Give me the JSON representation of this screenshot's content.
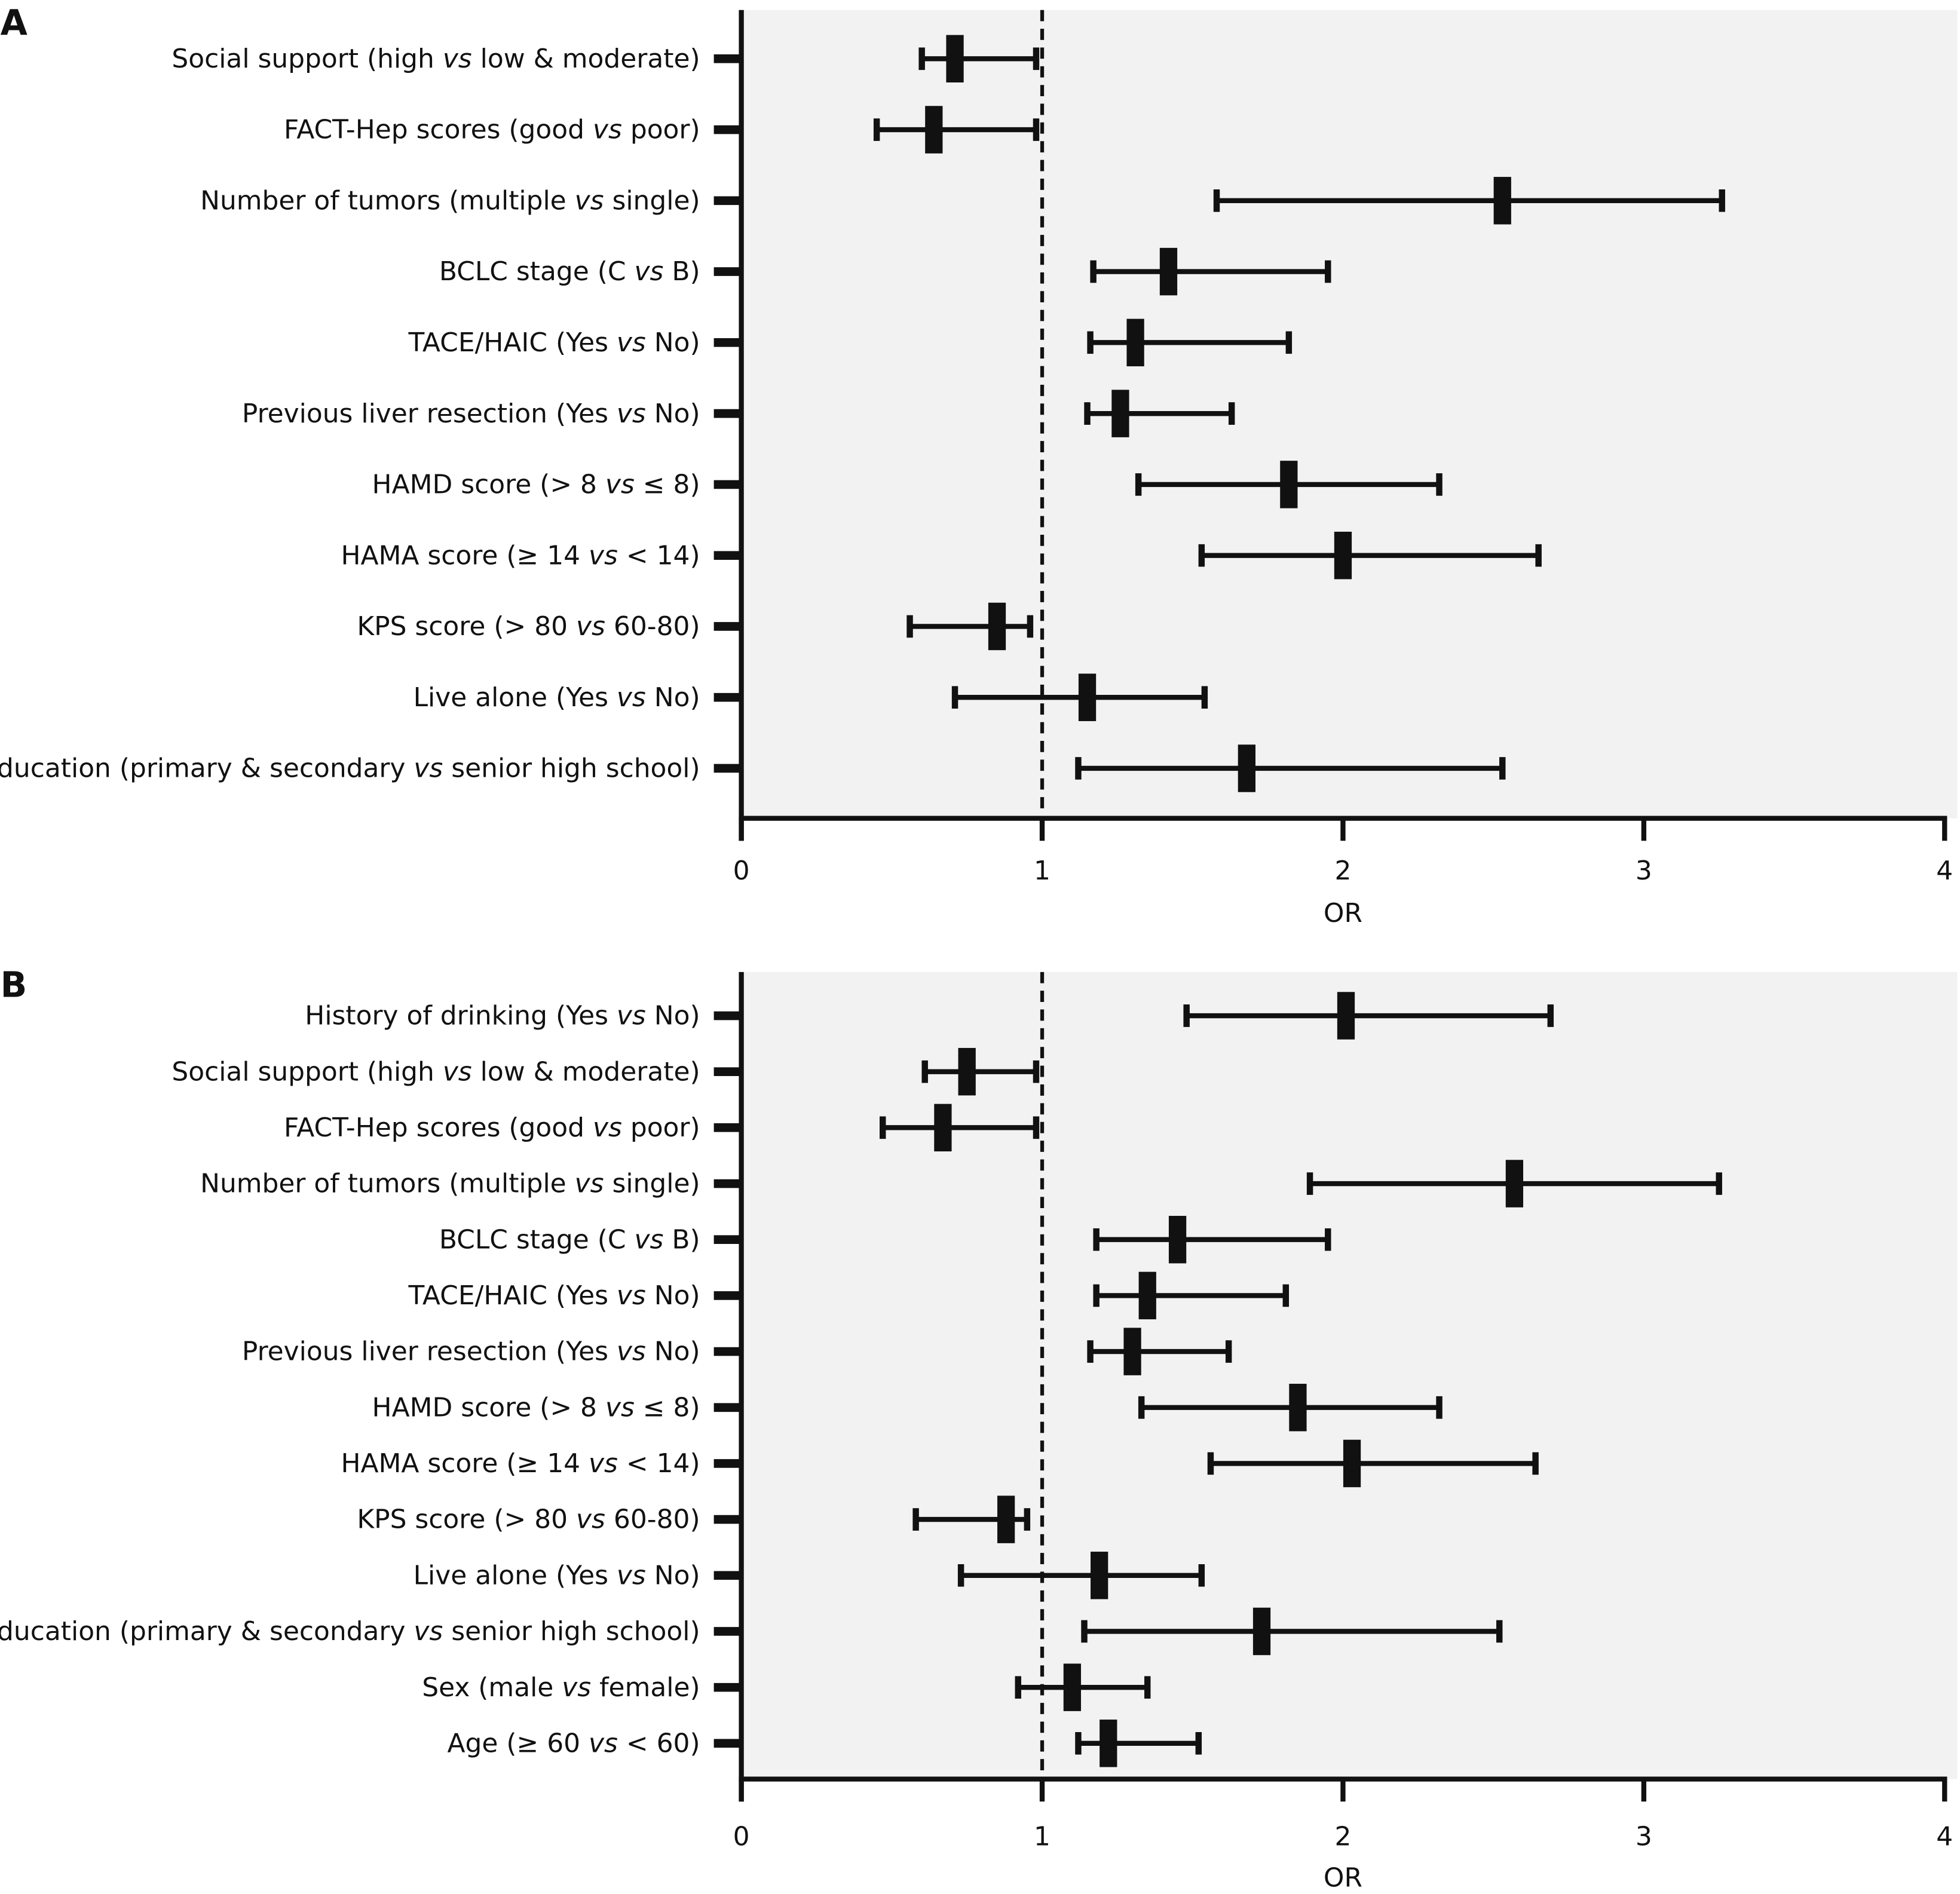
{
  "chart_data": [
    {
      "type": "forest",
      "panel_label": "A",
      "xlabel": "OR",
      "xlim": [
        0,
        4
      ],
      "xticks": [
        "0",
        "1",
        "2",
        "3",
        "4"
      ],
      "reference_line": 1,
      "grid": false,
      "background": "#f2f2f2",
      "rows": [
        {
          "label": "Social support (high vs low & moderate)",
          "or": 0.71,
          "lo": 0.6,
          "hi": 0.98
        },
        {
          "label": "FACT-Hep scores (good vs poor)",
          "or": 0.64,
          "lo": 0.45,
          "hi": 0.98
        },
        {
          "label": "Number of tumors (multiple vs single)",
          "or": 2.53,
          "lo": 1.58,
          "hi": 3.26
        },
        {
          "label": "BCLC stage (C vs B)",
          "or": 1.42,
          "lo": 1.17,
          "hi": 1.95
        },
        {
          "label": "TACE/HAIC (Yes vs No)",
          "or": 1.31,
          "lo": 1.16,
          "hi": 1.82
        },
        {
          "label": "Previous liver resection (Yes vs No)",
          "or": 1.26,
          "lo": 1.15,
          "hi": 1.63
        },
        {
          "label": "HAMD score (> 8 vs ≤ 8)",
          "or": 1.82,
          "lo": 1.32,
          "hi": 2.32
        },
        {
          "label": "HAMA score (≥ 14 vs < 14)",
          "or": 2.0,
          "lo": 1.53,
          "hi": 2.65
        },
        {
          "label": "KPS score (> 80 vs 60-80)",
          "or": 0.85,
          "lo": 0.56,
          "hi": 0.96
        },
        {
          "label": "Live alone (Yes vs No)",
          "or": 1.15,
          "lo": 0.71,
          "hi": 1.54
        },
        {
          "label": "Education (primary & secondary vs senior high school)",
          "or": 1.68,
          "lo": 1.12,
          "hi": 2.53
        }
      ]
    },
    {
      "type": "forest",
      "panel_label": "B",
      "xlabel": "OR",
      "xlim": [
        0,
        4
      ],
      "xticks": [
        "0",
        "1",
        "2",
        "3",
        "4"
      ],
      "reference_line": 1,
      "grid": false,
      "background": "#f2f2f2",
      "rows": [
        {
          "label": "History of drinking (Yes vs No)",
          "or": 2.01,
          "lo": 1.48,
          "hi": 2.69
        },
        {
          "label": "Social support (high vs low & moderate)",
          "or": 0.75,
          "lo": 0.61,
          "hi": 0.98
        },
        {
          "label": "FACT-Hep scores (good vs poor)",
          "or": 0.67,
          "lo": 0.47,
          "hi": 0.98
        },
        {
          "label": "Number of tumors (multiple vs single)",
          "or": 2.57,
          "lo": 1.89,
          "hi": 3.25
        },
        {
          "label": "BCLC stage (C vs B)",
          "or": 1.45,
          "lo": 1.18,
          "hi": 1.95
        },
        {
          "label": "TACE/HAIC (Yes vs No)",
          "or": 1.35,
          "lo": 1.18,
          "hi": 1.81
        },
        {
          "label": "Previous liver resection (Yes vs No)",
          "or": 1.3,
          "lo": 1.16,
          "hi": 1.62
        },
        {
          "label": "HAMD score (> 8 vs ≤ 8)",
          "or": 1.85,
          "lo": 1.33,
          "hi": 2.32
        },
        {
          "label": "HAMA score (≥ 14 vs < 14)",
          "or": 2.03,
          "lo": 1.56,
          "hi": 2.64
        },
        {
          "label": "KPS score (> 80 vs 60-80)",
          "or": 0.88,
          "lo": 0.58,
          "hi": 0.95
        },
        {
          "label": "Live alone (Yes vs No)",
          "or": 1.19,
          "lo": 0.73,
          "hi": 1.53
        },
        {
          "label": "Education (primary & secondary vs senior high school)",
          "or": 1.73,
          "lo": 1.14,
          "hi": 2.52
        },
        {
          "label": "Sex (male vs female)",
          "or": 1.1,
          "lo": 0.92,
          "hi": 1.35
        },
        {
          "label": "Age (≥ 60 vs < 60)",
          "or": 1.22,
          "lo": 1.12,
          "hi": 1.52
        }
      ]
    }
  ]
}
